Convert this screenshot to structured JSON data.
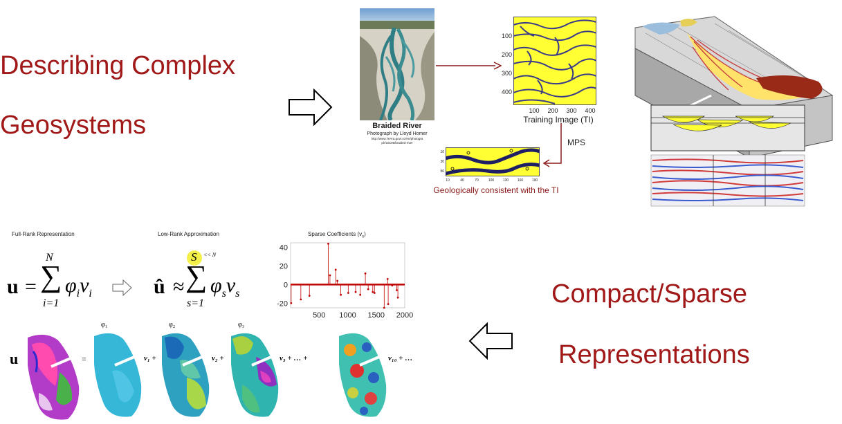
{
  "headings": {
    "describing_line1": "Describing Complex",
    "describing_line2": "Geosystems",
    "compact_line1": "Compact/Sparse",
    "compact_line2": "Representations"
  },
  "river": {
    "caption": "Braided River",
    "credit": "Photograph by Lloyd Homer",
    "url_line1": "http://www.TeAra.govt.nz/en/photogra",
    "url_line2": "ph/18195/braided-river"
  },
  "training_image": {
    "caption": "Training Image (TI)",
    "y_ticks": [
      "100",
      "200",
      "300",
      "400"
    ],
    "x_ticks": [
      "100",
      "200",
      "300",
      "400"
    ]
  },
  "mps": {
    "label": "MPS",
    "caption": "Geologically consistent with the TI",
    "y_ticks": [
      "10",
      "30",
      "50"
    ],
    "x_ticks": [
      "10",
      "40",
      "70",
      "100",
      "130",
      "160",
      "190"
    ]
  },
  "representations": {
    "full_rank_title": "Full-Rank Representation",
    "low_rank_title": "Low-Rank Approximation",
    "sparse_title": "Sparse Coefficients (v",
    "sparse_title_sub": "s",
    "sparse_title_end": ")",
    "S_note": "<< N"
  },
  "equations": {
    "full_u": "u",
    "full_eq": "=",
    "full_upper": "N",
    "full_lower": "i=1",
    "full_term": "φ",
    "full_term_sub": "i",
    "full_v": "v",
    "full_v_sub": "i",
    "low_u": "û",
    "low_approx": "≈",
    "low_upper": "S",
    "low_lower": "s=1",
    "low_term": "φ",
    "low_term_sub": "s",
    "low_v": "v",
    "low_v_sub": "s"
  },
  "basis_row": {
    "u_label": "u",
    "eq": "=",
    "phi1": "φ₁",
    "phi2": "φ₂",
    "phi3": "φ₃",
    "v1": "v₁ +",
    "v2": "v₂ +",
    "v3": "v₃ +  …  +",
    "v10": "v₁₀ + …"
  },
  "chart_data": {
    "type": "stem",
    "title": "Sparse Coefficients (vs)",
    "xlim": [
      0,
      2000
    ],
    "ylim": [
      -25,
      45
    ],
    "x_ticks": [
      500,
      1000,
      1500,
      2000
    ],
    "y_ticks": [
      -20,
      0,
      20,
      40
    ],
    "x": [
      10,
      180,
      330,
      660,
      690,
      790,
      820,
      880,
      1010,
      1140,
      1220,
      1310,
      1360,
      1440,
      1470,
      1640,
      1700,
      1710,
      1780,
      1860,
      1880
    ],
    "values": [
      -20,
      -16,
      -12,
      44,
      10,
      16,
      4,
      -11,
      -9,
      -8,
      -11,
      12,
      -5,
      -8,
      -9,
      -25,
      6,
      -21,
      -1,
      -6,
      -14
    ],
    "color": "#c00000"
  },
  "colors": {
    "accent": "#a01818",
    "ti_yellow": "#ffff33",
    "channel": "#3a3a8a"
  }
}
